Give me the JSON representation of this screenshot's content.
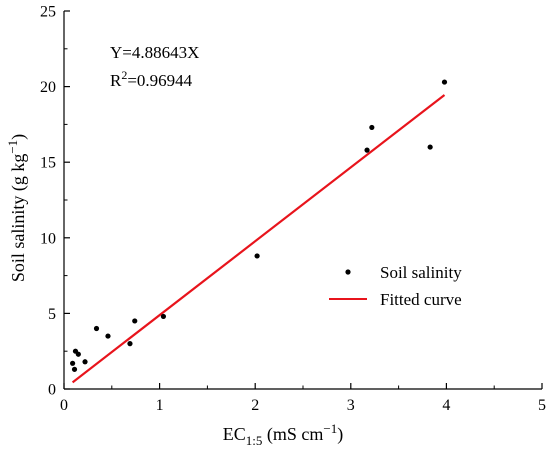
{
  "chart_data": {
    "type": "scatter",
    "xlabel": {
      "base": "EC",
      "sub": "1:5",
      "rest": " (mS cm",
      "sup": "−1",
      "end": ")"
    },
    "ylabel": {
      "base": "Soil salinity (g kg",
      "sup": "−1",
      "end": ")"
    },
    "xlim": [
      0,
      5
    ],
    "ylim": [
      0,
      25
    ],
    "xticks": [
      0,
      1,
      2,
      3,
      4,
      5
    ],
    "yticks": [
      0,
      5,
      10,
      15,
      20,
      25
    ],
    "grid": false,
    "legend_position": "center-right",
    "equation": "Y=4.88643X",
    "r2": {
      "base": "R",
      "sup": "2",
      "rest": "=0.96944"
    },
    "series": [
      {
        "name": "Soil salinity",
        "kind": "scatter",
        "color": "#000000",
        "points": [
          {
            "x": 0.09,
            "y": 1.7
          },
          {
            "x": 0.11,
            "y": 1.3
          },
          {
            "x": 0.12,
            "y": 2.5
          },
          {
            "x": 0.15,
            "y": 2.3
          },
          {
            "x": 0.22,
            "y": 1.8
          },
          {
            "x": 0.34,
            "y": 4.0
          },
          {
            "x": 0.46,
            "y": 3.5
          },
          {
            "x": 0.69,
            "y": 3.0
          },
          {
            "x": 0.74,
            "y": 4.5
          },
          {
            "x": 1.04,
            "y": 4.8
          },
          {
            "x": 2.02,
            "y": 8.8
          },
          {
            "x": 3.17,
            "y": 15.8
          },
          {
            "x": 3.22,
            "y": 17.3
          },
          {
            "x": 3.83,
            "y": 16.0
          },
          {
            "x": 3.98,
            "y": 20.3
          }
        ]
      },
      {
        "name": "Fitted curve",
        "kind": "line",
        "color": "#e8141c",
        "slope": 4.88643,
        "x_range": [
          0.09,
          3.98
        ]
      }
    ]
  }
}
